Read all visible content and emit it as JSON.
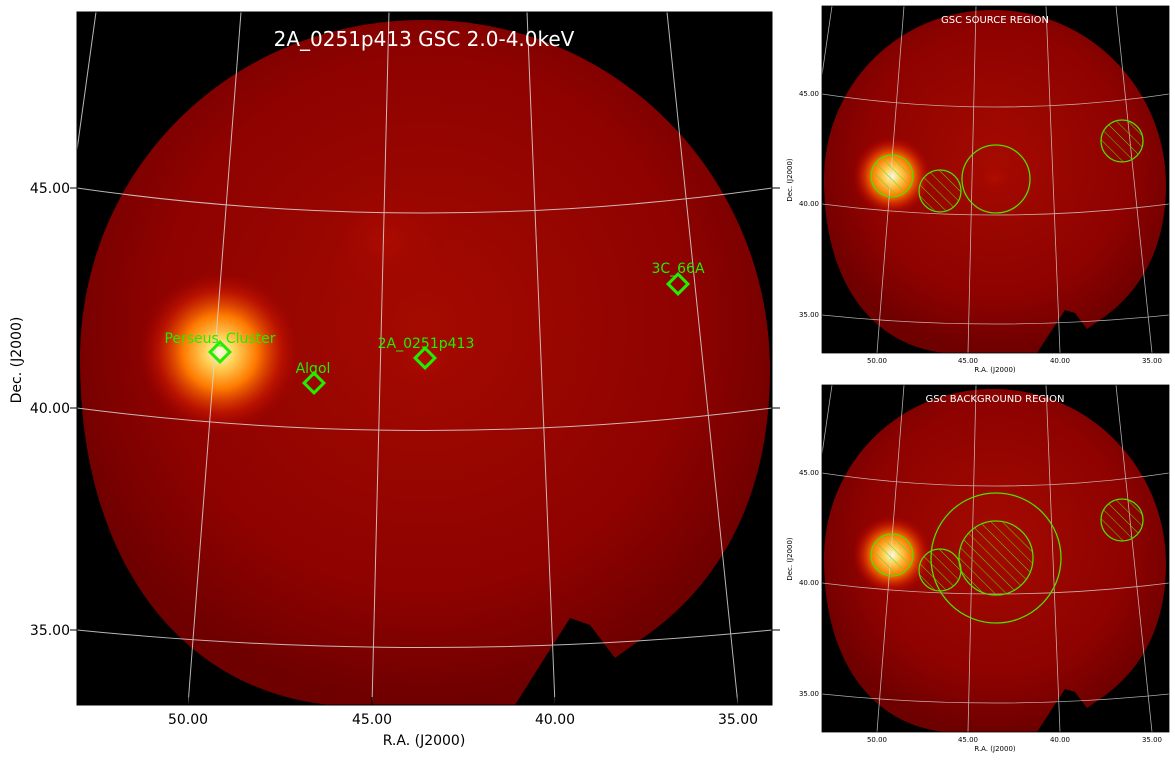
{
  "main": {
    "title": "2A_0251p413 GSC 2.0-4.0keV",
    "xlabel": "R.A. (J2000)",
    "ylabel": "Dec. (J2000)",
    "xticks": [
      "50.00",
      "45.00",
      "40.00",
      "35.00"
    ],
    "yticks": [
      "45.00",
      "40.00",
      "35.00"
    ],
    "sources": [
      {
        "label": "Perseus_Cluster"
      },
      {
        "label": "Algol"
      },
      {
        "label": "2A_0251p413"
      },
      {
        "label": "3C_66A"
      }
    ]
  },
  "source_region": {
    "title": "GSC SOURCE REGION",
    "xlabel": "R.A. (J2000)",
    "ylabel": "Dec. (J2000)",
    "xticks": [
      "50.00",
      "45.00",
      "40.00",
      "35.00"
    ],
    "yticks": [
      "45.00",
      "40.00",
      "35.00"
    ]
  },
  "background_region": {
    "title": "GSC BACKGROUND REGION",
    "xlabel": "R.A. (J2000)",
    "ylabel": "Dec. (J2000)",
    "xticks": [
      "50.00",
      "45.00",
      "40.00",
      "35.00"
    ],
    "yticks": [
      "45.00",
      "40.00",
      "35.00"
    ]
  },
  "colors": {
    "marker": "#22ee00",
    "region": "#55dd00",
    "grid": "#d8d8d8",
    "sky": "#8a0000",
    "background": "#000000"
  }
}
